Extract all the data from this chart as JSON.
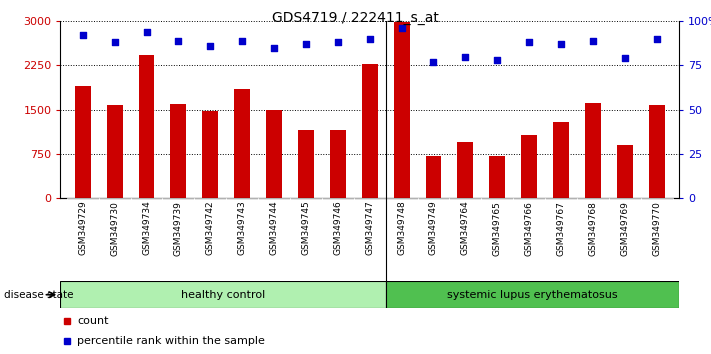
{
  "title": "GDS4719 / 222411_s_at",
  "samples": [
    "GSM349729",
    "GSM349730",
    "GSM349734",
    "GSM349739",
    "GSM349742",
    "GSM349743",
    "GSM349744",
    "GSM349745",
    "GSM349746",
    "GSM349747",
    "GSM349748",
    "GSM349749",
    "GSM349764",
    "GSM349765",
    "GSM349766",
    "GSM349767",
    "GSM349768",
    "GSM349769",
    "GSM349770"
  ],
  "counts": [
    1900,
    1580,
    2420,
    1600,
    1480,
    1850,
    1490,
    1150,
    1160,
    2280,
    2980,
    710,
    950,
    720,
    1070,
    1290,
    1620,
    900,
    1580
  ],
  "percentiles": [
    92,
    88,
    94,
    89,
    86,
    89,
    85,
    87,
    88,
    90,
    96,
    77,
    80,
    78,
    88,
    87,
    89,
    79,
    90
  ],
  "bar_color": "#cc0000",
  "dot_color": "#0000cc",
  "healthy_count": 10,
  "disease_group1": "healthy control",
  "disease_group2": "systemic lupus erythematosus",
  "disease_label": "disease state",
  "legend_count": "count",
  "legend_percentile": "percentile rank within the sample",
  "ylim_left": [
    0,
    3000
  ],
  "ylim_right": [
    0,
    100
  ],
  "yticks_left": [
    0,
    750,
    1500,
    2250,
    3000
  ],
  "yticks_right": [
    0,
    25,
    50,
    75,
    100
  ],
  "ytick_labels_right": [
    "0",
    "25",
    "50",
    "75",
    "100%"
  ],
  "background_main": "#ffffff",
  "background_xtick": "#c8c8c8",
  "background_healthy": "#b0f0b0",
  "background_lupus": "#50c050",
  "bar_width": 0.5
}
